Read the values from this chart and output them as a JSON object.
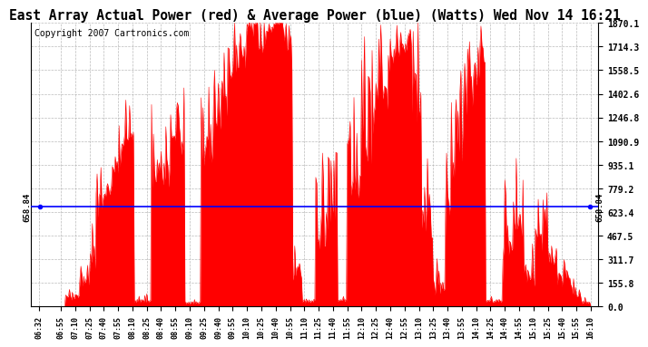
{
  "title": "East Array Actual Power (red) & Average Power (blue) (Watts) Wed Nov 14 16:21",
  "copyright": "Copyright 2007 Cartronics.com",
  "average_power": 658.84,
  "y_max": 1870.1,
  "y_min": 0.0,
  "y_ticks": [
    0.0,
    155.8,
    311.7,
    467.5,
    623.4,
    779.2,
    935.1,
    1090.9,
    1246.8,
    1402.6,
    1558.5,
    1714.3,
    1870.1
  ],
  "x_tick_labels": [
    "06:32",
    "06:55",
    "07:10",
    "07:25",
    "07:40",
    "07:55",
    "08:10",
    "08:25",
    "08:40",
    "08:55",
    "09:10",
    "09:25",
    "09:40",
    "09:55",
    "10:10",
    "10:25",
    "10:40",
    "10:55",
    "11:10",
    "11:25",
    "11:40",
    "11:55",
    "12:10",
    "12:25",
    "12:40",
    "12:55",
    "13:10",
    "13:25",
    "13:40",
    "13:55",
    "14:10",
    "14:25",
    "14:40",
    "14:55",
    "15:10",
    "15:25",
    "15:40",
    "15:55",
    "16:10"
  ],
  "bar_color": "#FF0000",
  "line_color": "#0000FF",
  "background_color": "#FFFFFF",
  "grid_color": "#AAAAAA",
  "title_fontsize": 10.5,
  "copyright_fontsize": 7,
  "avg_label": "658.84"
}
